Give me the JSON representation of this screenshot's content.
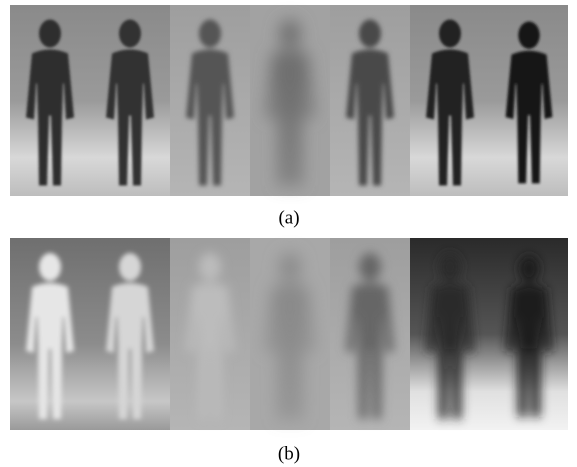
{
  "figure": {
    "panels": [
      {
        "label": "(a)"
      },
      {
        "label": "(b)"
      }
    ]
  }
}
